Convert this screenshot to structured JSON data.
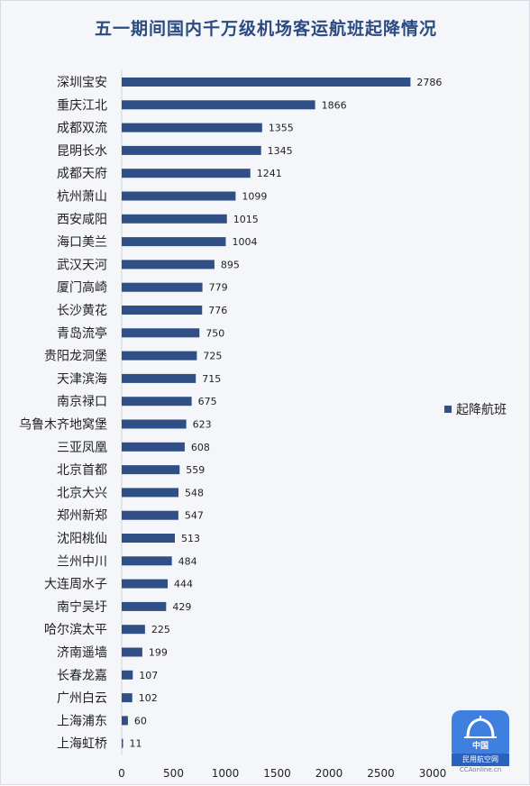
{
  "chart_data": {
    "type": "bar",
    "orientation": "horizontal",
    "title": "五一期间国内千万级机场客运航班起降情况",
    "categories": [
      "深圳宝安",
      "重庆江北",
      "成都双流",
      "昆明长水",
      "成都天府",
      "杭州萧山",
      "西安咸阳",
      "海口美兰",
      "武汉天河",
      "厦门高崎",
      "长沙黄花",
      "青岛流亭",
      "贵阳龙洞堡",
      "天津滨海",
      "南京禄口",
      "乌鲁木齐地窝堡",
      "三亚凤凰",
      "北京首都",
      "北京大兴",
      "郑州新郑",
      "沈阳桃仙",
      "兰州中川",
      "大连周水子",
      "南宁吴圩",
      "哈尔滨太平",
      "济南遥墙",
      "长春龙嘉",
      "广州白云",
      "上海浦东",
      "上海虹桥"
    ],
    "series": [
      {
        "name": "起降航班",
        "values": [
          2786,
          1866,
          1355,
          1345,
          1241,
          1099,
          1015,
          1004,
          895,
          779,
          776,
          750,
          725,
          715,
          675,
          623,
          608,
          559,
          548,
          547,
          513,
          484,
          444,
          429,
          225,
          199,
          107,
          102,
          60,
          11
        ]
      }
    ],
    "xlim": [
      0,
      3000
    ],
    "xticks": [
      0,
      500,
      1000,
      1500,
      2000,
      2500,
      3000
    ],
    "legend_position": "right",
    "bar_color": "#2f4f86",
    "grid": false
  },
  "logo": {
    "line1": "中国",
    "line2": "民用航空网",
    "line3": "CCAonline.cn"
  }
}
